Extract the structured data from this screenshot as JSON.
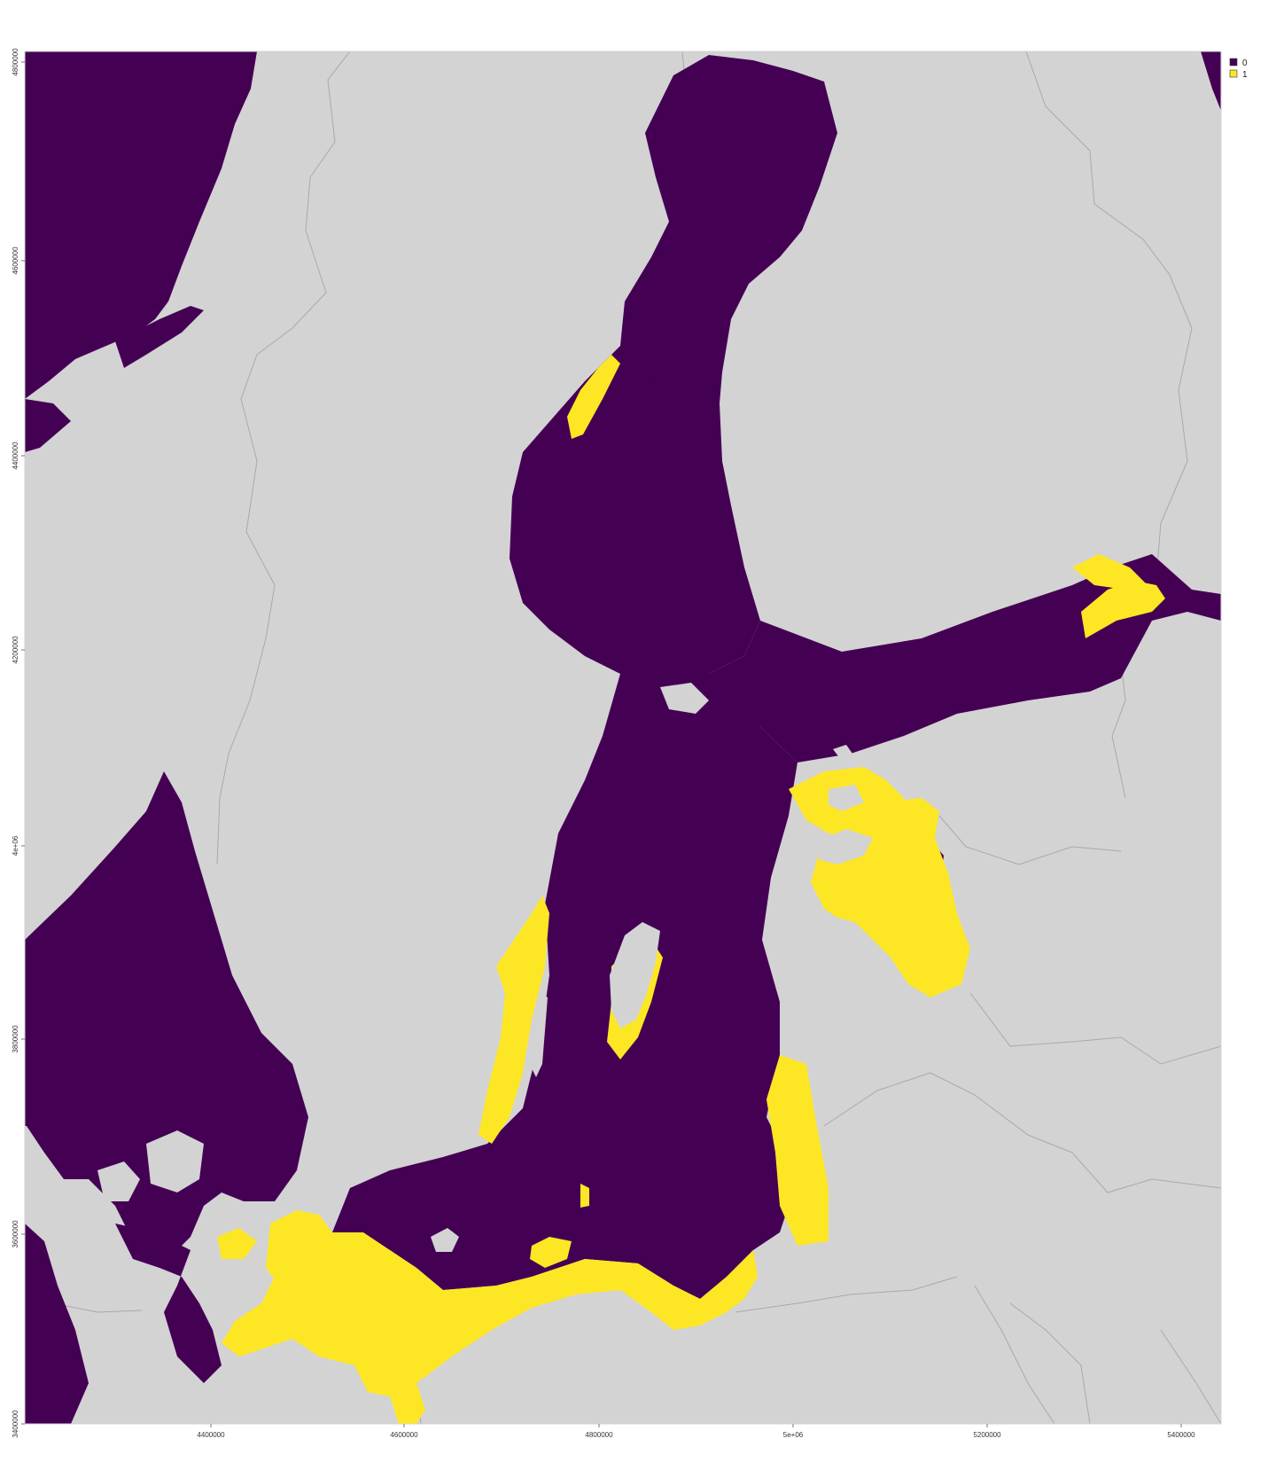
{
  "colors": {
    "land": "#d3d3d3",
    "class_0": "#440154",
    "class_1": "#fde725",
    "border": "#a9a9a9",
    "background": "#ffffff"
  },
  "legend": {
    "items": [
      {
        "label": "0",
        "color": "#440154"
      },
      {
        "label": "1",
        "color": "#fde725"
      }
    ]
  },
  "axes": {
    "x_ticks": [
      "4400000",
      "4600000",
      "4800000",
      "5e+06",
      "5200000",
      "5400000"
    ],
    "y_ticks": [
      "4800000",
      "4600000",
      "4400000",
      "4200000",
      "4e+06",
      "3800000",
      "3600000",
      "3400000"
    ]
  }
}
